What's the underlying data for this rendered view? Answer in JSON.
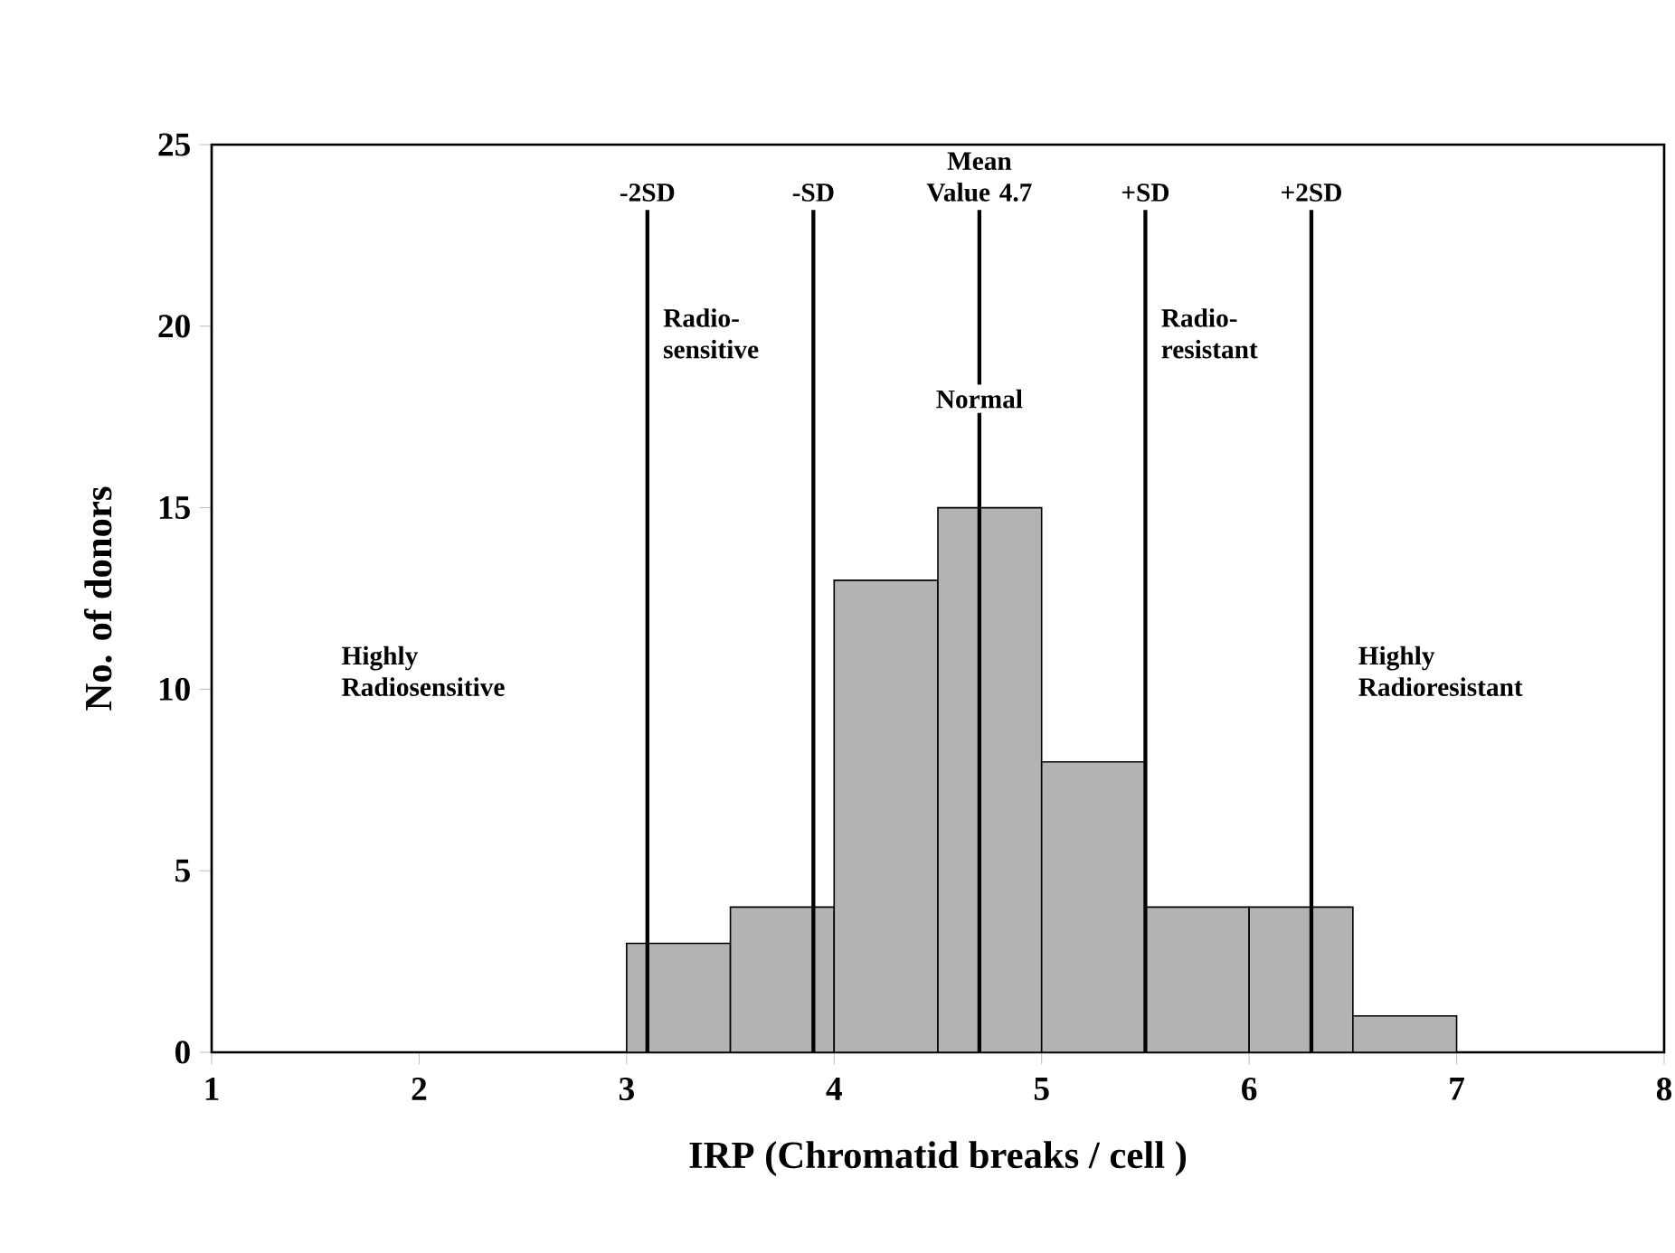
{
  "chart_data": {
    "type": "histogram",
    "xlabel": "IRP (Chromatid breaks / cell )",
    "ylabel": "No. of donors",
    "bins": [
      3,
      3.5,
      4,
      4.5,
      5,
      5.5,
      6,
      6.5,
      7
    ],
    "values": [
      3,
      4,
      13,
      15,
      8,
      4,
      4,
      1
    ],
    "color": "#b3b3b3",
    "xlim": [
      1,
      8
    ],
    "xticks": [
      1,
      2,
      3,
      4,
      5,
      6,
      7,
      8
    ],
    "ylim": [
      0,
      25
    ],
    "yticks": [
      0,
      5,
      10,
      15,
      20,
      25
    ],
    "grid": false,
    "ref_lines": [
      {
        "axis": "x",
        "value": 3.1,
        "label": "-2SD",
        "color": "#000000"
      },
      {
        "axis": "x",
        "value": 3.9,
        "label": "-SD",
        "color": "#000000"
      },
      {
        "axis": "x",
        "value": 4.7,
        "label": "Mean Value 4.7",
        "color": "#000000"
      },
      {
        "axis": "x",
        "value": 5.5,
        "label": "+SD",
        "color": "#000000"
      },
      {
        "axis": "x",
        "value": 6.3,
        "label": "+2SD",
        "color": "#000000"
      }
    ],
    "annotations": [
      "Highly Radiosensitive",
      "Radio-sensitive",
      "Normal",
      "Radio-resistant",
      "Highly Radioresistant"
    ]
  }
}
